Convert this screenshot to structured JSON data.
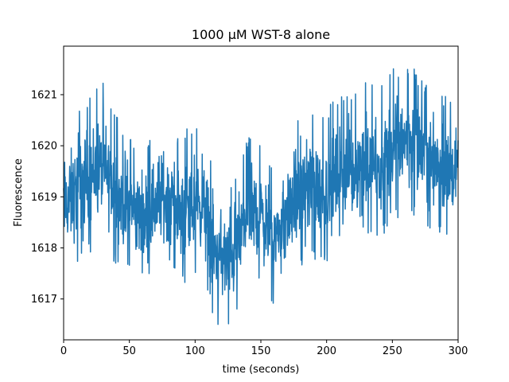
{
  "chart_data": {
    "type": "line",
    "title": "1000 μM WST-8 alone",
    "xlabel": "time (seconds)",
    "ylabel": "Fluorescence",
    "xlim": [
      0,
      300
    ],
    "ylim": [
      1616.2,
      1621.95
    ],
    "x_ticks": [
      0,
      50,
      100,
      150,
      200,
      250,
      300
    ],
    "y_ticks": [
      1617,
      1618,
      1619,
      1620,
      1621
    ],
    "grid": false,
    "legend": "none",
    "series": [
      {
        "color": "#1f77b4",
        "x": [
          0,
          5,
          10,
          15,
          20,
          25,
          30,
          35,
          40,
          45,
          50,
          55,
          60,
          65,
          70,
          75,
          80,
          85,
          90,
          95,
          100,
          105,
          110,
          115,
          120,
          125,
          130,
          135,
          140,
          145,
          150,
          155,
          160,
          165,
          170,
          175,
          180,
          185,
          190,
          195,
          200,
          205,
          210,
          215,
          220,
          225,
          230,
          235,
          240,
          245,
          250,
          255,
          260,
          265,
          270,
          275,
          280,
          285,
          290,
          295,
          300
        ],
        "mean": [
          1618.8,
          1618.9,
          1619.1,
          1619.3,
          1619.4,
          1619.5,
          1619.5,
          1619.3,
          1619.1,
          1618.9,
          1618.8,
          1618.7,
          1618.6,
          1618.7,
          1618.9,
          1619.0,
          1619.0,
          1618.8,
          1618.6,
          1618.7,
          1618.9,
          1618.9,
          1618.4,
          1617.9,
          1617.8,
          1617.7,
          1617.9,
          1618.3,
          1618.6,
          1618.7,
          1618.6,
          1618.4,
          1618.2,
          1618.3,
          1618.6,
          1618.9,
          1619.0,
          1619.2,
          1619.2,
          1619.0,
          1619.1,
          1619.3,
          1619.4,
          1619.4,
          1619.5,
          1619.6,
          1619.7,
          1619.6,
          1619.5,
          1619.7,
          1619.9,
          1620.0,
          1620.2,
          1620.1,
          1619.9,
          1619.8,
          1619.8,
          1619.7,
          1619.6,
          1619.5,
          1619.4
        ],
        "high": [
          1620.3,
          1620.5,
          1620.8,
          1620.9,
          1621.0,
          1621.2,
          1621.3,
          1620.9,
          1620.6,
          1620.4,
          1620.3,
          1620.1,
          1620.0,
          1620.2,
          1620.4,
          1620.6,
          1620.5,
          1620.3,
          1620.2,
          1620.4,
          1620.5,
          1620.5,
          1619.9,
          1619.4,
          1619.4,
          1619.3,
          1619.5,
          1619.8,
          1620.2,
          1620.3,
          1620.1,
          1619.9,
          1619.7,
          1619.9,
          1620.1,
          1620.5,
          1620.6,
          1620.8,
          1621.2,
          1620.6,
          1620.7,
          1620.9,
          1621.0,
          1621.0,
          1621.1,
          1621.2,
          1621.3,
          1621.2,
          1621.2,
          1621.4,
          1621.5,
          1621.6,
          1621.7,
          1621.6,
          1621.4,
          1621.2,
          1621.2,
          1621.1,
          1621.0,
          1620.9,
          1620.7
        ],
        "low": [
          1617.4,
          1617.5,
          1617.6,
          1617.9,
          1617.9,
          1618.0,
          1618.1,
          1617.8,
          1617.6,
          1617.4,
          1617.5,
          1617.3,
          1617.1,
          1617.3,
          1617.5,
          1617.6,
          1617.6,
          1617.4,
          1617.2,
          1617.2,
          1617.4,
          1617.5,
          1617.0,
          1616.5,
          1616.5,
          1616.4,
          1616.6,
          1616.9,
          1617.2,
          1617.3,
          1617.2,
          1617.0,
          1616.9,
          1617.0,
          1617.2,
          1617.5,
          1617.6,
          1617.7,
          1617.8,
          1617.6,
          1617.7,
          1617.9,
          1618.0,
          1618.0,
          1618.1,
          1618.2,
          1618.3,
          1618.2,
          1618.1,
          1618.3,
          1618.5,
          1618.6,
          1618.8,
          1618.6,
          1618.5,
          1618.4,
          1618.3,
          1618.2,
          1618.1,
          1618.0,
          1618.9
        ]
      }
    ]
  }
}
